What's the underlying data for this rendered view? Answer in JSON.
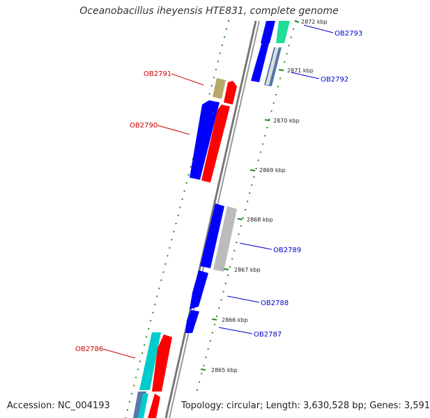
{
  "title": "Oceanobacillus iheyensis HTE831, complete genome",
  "footer": {
    "accession": "Accession: NC_004193",
    "summary": "Topology: circular; Length: 3,630,528 bp; Genes: 3,591"
  },
  "colors": {
    "forward": "#0000ff",
    "reverse": "#ff0000",
    "teal": "#00cccc",
    "mint": "#22dd99",
    "khaki": "#b5a86a",
    "gray": "#c0c0c0",
    "slate": "#5577aa",
    "tick": "#228822",
    "backbone": "#777777",
    "label_forward": "#0000cc",
    "label_reverse": "#cc0000"
  },
  "tick_labels": [
    "2872 kbp",
    "2871 kbp",
    "2870 kbp",
    "2869 kbp",
    "2868 kbp",
    "2867 kbp",
    "2866 kbp",
    "2865 kbp"
  ],
  "gene_labels": {
    "OB2793": "OB2793",
    "OB2792": "OB2792",
    "OB2791": "OB2791",
    "OB2790": "OB2790",
    "OB2789": "OB2789",
    "OB2788": "OB2788",
    "OB2787": "OB2787",
    "OB2786": "OB2786"
  }
}
